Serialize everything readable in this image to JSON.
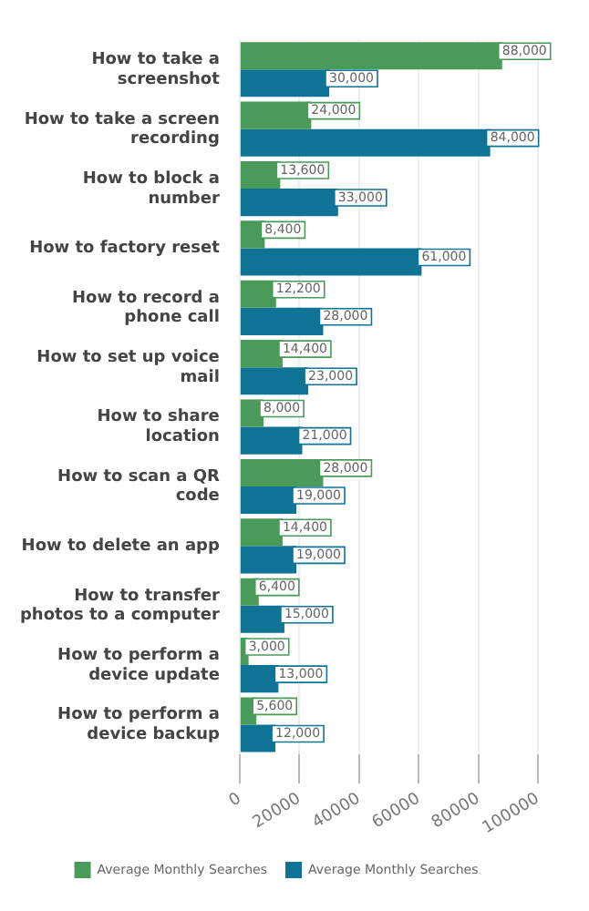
{
  "chart_data": {
    "type": "bar",
    "orientation": "horizontal",
    "categories": [
      "How to take a screenshot",
      "How to take a screen recording",
      "How to block a number",
      "How to factory reset",
      "How to record a phone call",
      "How to set up voice mail",
      "How to share location",
      "How to scan a QR code",
      "How to delete an app",
      "How to transfer photos to a computer",
      "How to perform a device update",
      "How to perform a device backup"
    ],
    "series": [
      {
        "name": "Average Monthly Searches",
        "color": "#4a9a5a",
        "values": [
          88000,
          24000,
          13600,
          8400,
          12200,
          14400,
          8000,
          28000,
          14400,
          6400,
          3000,
          5600
        ],
        "value_labels": [
          "88,000",
          "24,000",
          "13,600",
          "8,400",
          "12,200",
          "14,400",
          "8,000",
          "28,000",
          "14,400",
          "6,400",
          "3,000",
          "5,600"
        ]
      },
      {
        "name": "Average Monthly Searches",
        "color": "#0f7396",
        "values": [
          30000,
          84000,
          33000,
          61000,
          28000,
          23000,
          21000,
          19000,
          19000,
          15000,
          13000,
          12000
        ],
        "value_labels": [
          "30,000",
          "84,000",
          "33,000",
          "61,000",
          "28,000",
          "23,000",
          "21,000",
          "19,000",
          "19,000",
          "15,000",
          "13,000",
          "12,000"
        ]
      }
    ],
    "xlim": [
      0,
      100000
    ],
    "xticks": [
      0,
      20000,
      40000,
      60000,
      80000,
      100000
    ],
    "grid": "x",
    "legend": "bottom"
  }
}
